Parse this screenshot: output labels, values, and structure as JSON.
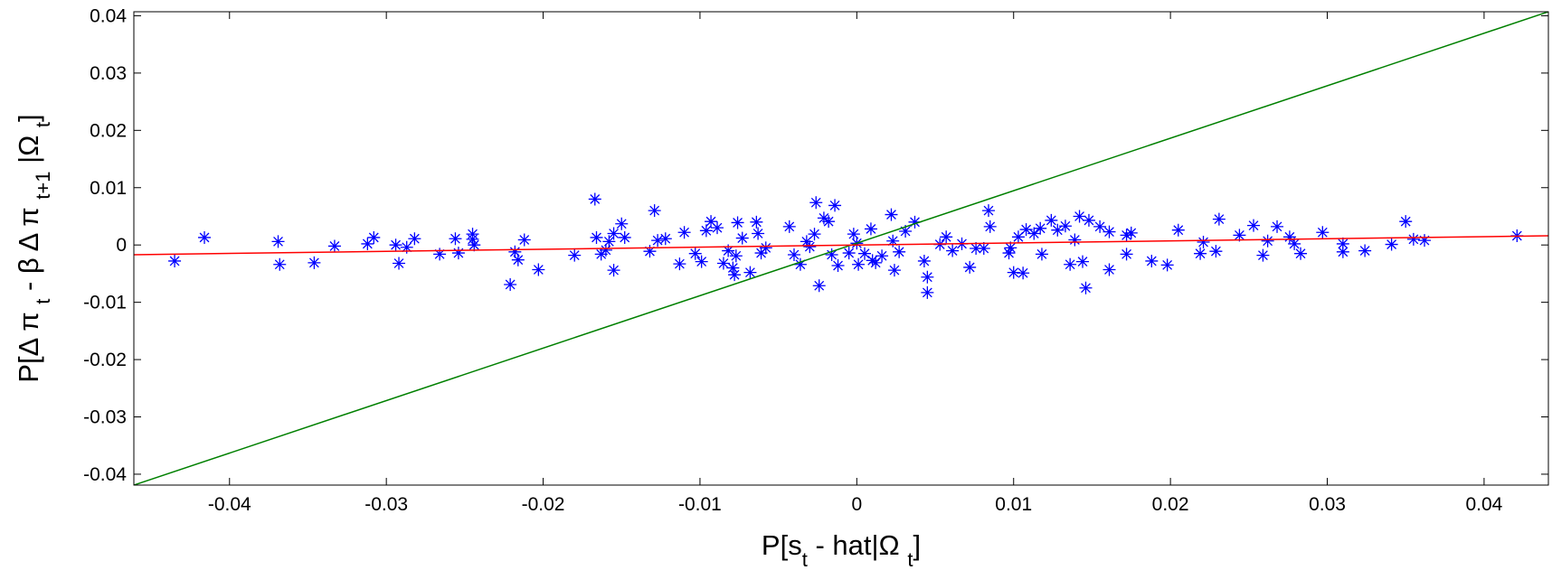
{
  "chart_data": {
    "type": "scatter",
    "xlabel": [
      "P[s",
      "t",
      " - hat|Ω ",
      "t",
      "]"
    ],
    "ylabel": [
      "P[Δ π ",
      "t",
      " - β Δ π ",
      "t+1",
      " |Ω ",
      "t",
      "]"
    ],
    "xlim": [
      -0.0461,
      0.0441
    ],
    "ylim": [
      -0.0419,
      0.0407
    ],
    "xticks": [
      -0.04,
      -0.03,
      -0.02,
      -0.01,
      0,
      0.01,
      0.02,
      0.03,
      0.04
    ],
    "yticks": [
      -0.04,
      -0.03,
      -0.02,
      -0.01,
      0,
      0.01,
      0.02,
      0.03,
      0.04
    ],
    "grid": false,
    "series": [
      {
        "type": "scatter",
        "marker": "asterisk",
        "color": "#0000ff",
        "x": [
          -0.0435,
          -0.0416,
          -0.0369,
          -0.0368,
          -0.0346,
          -0.0333,
          -0.0312,
          -0.0308,
          -0.0294,
          -0.0292,
          -0.0287,
          -0.0282,
          -0.0266,
          -0.0256,
          -0.0254,
          -0.0245,
          -0.0245,
          -0.0244,
          -0.0221,
          -0.0218,
          -0.0216,
          -0.0212,
          -0.0203,
          -0.018,
          -0.0167,
          -0.0166,
          -0.0163,
          -0.016,
          -0.0158,
          -0.0155,
          -0.0155,
          -0.015,
          -0.0148,
          -0.0132,
          -0.0129,
          -0.0127,
          -0.0122,
          -0.0113,
          -0.011,
          -0.0103,
          -0.0099,
          -0.0096,
          -0.0093,
          -0.0089,
          -0.0085,
          -0.0082,
          -0.0079,
          -0.0078,
          -0.0077,
          -0.0076,
          -0.0073,
          -0.0068,
          -0.0064,
          -0.0063,
          -0.0061,
          -0.0058,
          -0.0043,
          -0.004,
          -0.0036,
          -0.0032,
          -0.003,
          -0.0027,
          -0.0026,
          -0.0024,
          -0.0021,
          -0.0018,
          -0.0016,
          -0.0014,
          -0.0012,
          -0.0005,
          -0.0002,
          0,
          0.0001,
          0.0005,
          0.0009,
          0.001,
          0.0012,
          0.0016,
          0.0022,
          0.0023,
          0.0024,
          0.0027,
          0.0031,
          0.0037,
          0.0043,
          0.0045,
          0.0045,
          0.0053,
          0.0057,
          0.0061,
          0.0067,
          0.0072,
          0.0076,
          0.0081,
          0.0084,
          0.0085,
          0.0097,
          0.0098,
          0.01,
          0.0103,
          0.0106,
          0.0108,
          0.0113,
          0.0117,
          0.0118,
          0.0124,
          0.0128,
          0.0133,
          0.0136,
          0.0139,
          0.0142,
          0.0144,
          0.0146,
          0.0148,
          0.0155,
          0.0161,
          0.0161,
          0.0172,
          0.0172,
          0.0175,
          0.0188,
          0.0198,
          0.0205,
          0.0219,
          0.0221,
          0.0229,
          0.0231,
          0.0244,
          0.0253,
          0.0259,
          0.0262,
          0.0268,
          0.0276,
          0.0279,
          0.0283,
          0.0297,
          0.031,
          0.031,
          0.0324,
          0.0341,
          0.035,
          0.0355,
          0.0362,
          0.0421
        ],
        "values": [
          -0.0028,
          0.0013,
          0.0006,
          -0.0034,
          -0.0031,
          -0.0002,
          0.0002,
          0.0013,
          0,
          -0.0032,
          -0.0004,
          0.0011,
          -0.0016,
          0.0011,
          -0.0014,
          0.0019,
          0.001,
          0,
          -0.0069,
          -0.0012,
          -0.0026,
          0.0009,
          -0.0043,
          -0.0018,
          0.008,
          0.0013,
          -0.0016,
          -0.0009,
          0.0006,
          0.002,
          -0.0044,
          0.0037,
          0.0013,
          -0.0011,
          0.006,
          0.0008,
          0.0011,
          -0.0033,
          0.0022,
          -0.0015,
          -0.0029,
          0.0025,
          0.0041,
          0.003,
          -0.0032,
          -0.001,
          -0.004,
          -0.0052,
          -0.0019,
          0.0039,
          0.0012,
          -0.0048,
          0.004,
          0.002,
          -0.0014,
          -0.0005,
          0.0032,
          -0.0017,
          -0.0034,
          0.0006,
          -0.0003,
          0.0019,
          0.0074,
          -0.0071,
          0.0047,
          0.0041,
          -0.0017,
          0.0069,
          -0.0036,
          -0.0014,
          0.0019,
          0.0003,
          -0.0034,
          -0.0015,
          0.0028,
          -0.0027,
          -0.0031,
          -0.0019,
          0.0053,
          0.0007,
          -0.0044,
          -0.0012,
          0.0024,
          0.004,
          -0.0028,
          -0.0056,
          -0.0083,
          0.0001,
          0.0014,
          -0.001,
          0.0002,
          -0.0039,
          -0.0006,
          -0.0006,
          0.006,
          0.0032,
          -0.0014,
          -0.0005,
          -0.0048,
          0.0014,
          -0.0049,
          0.0027,
          0.002,
          0.0029,
          -0.0016,
          0.0043,
          0.0026,
          0.0033,
          -0.0034,
          0.0009,
          0.005,
          -0.0029,
          -0.0075,
          0.0043,
          0.0032,
          0.0023,
          -0.0043,
          0.0017,
          -0.0016,
          0.0021,
          -0.0028,
          -0.0035,
          0.0026,
          -0.0015,
          0.0005,
          -0.0011,
          0.0045,
          0.0017,
          0.0034,
          -0.0018,
          0.0007,
          0.0032,
          0.0014,
          0.0002,
          -0.0015,
          0.0022,
          -0.0012,
          0.0002,
          -0.001,
          0.0001,
          0.0041,
          0.001,
          0.0008,
          0.0016
        ]
      },
      {
        "type": "line",
        "color": "#008000",
        "x": [
          -0.0461,
          0.0441
        ],
        "values": [
          -0.0419,
          0.0407
        ]
      },
      {
        "type": "line",
        "color": "#ff0000",
        "x": [
          -0.0461,
          0.0441
        ],
        "values": [
          -0.0017,
          0.0016
        ]
      }
    ]
  }
}
